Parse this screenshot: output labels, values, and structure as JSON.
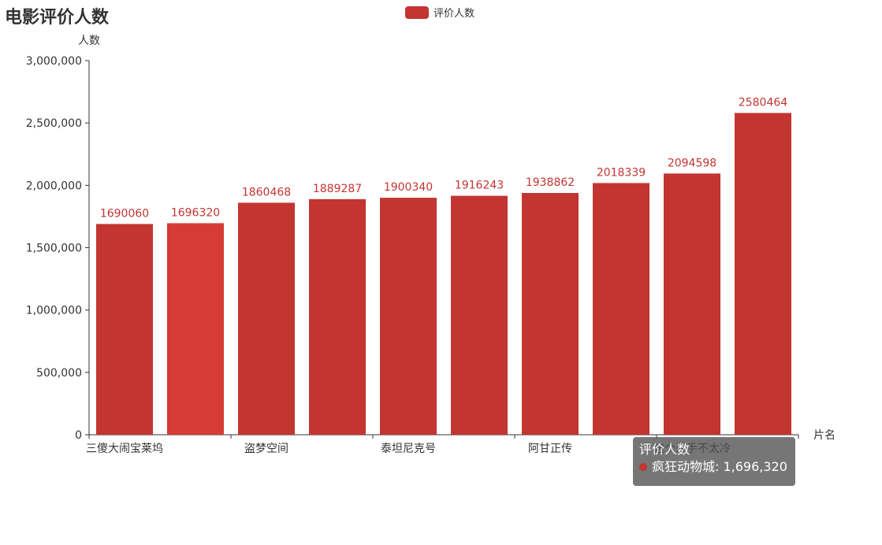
{
  "chart_data": {
    "type": "bar",
    "title": "电影评价人数",
    "ylabel": "人数",
    "xlabel": "片名",
    "ylim": [
      0,
      3000000
    ],
    "yticks": [
      0,
      500000,
      1000000,
      1500000,
      2000000,
      2500000,
      3000000
    ],
    "ytick_labels": [
      "0",
      "500,000",
      "1,000,000",
      "1,500,000",
      "2,000,000",
      "2,500,000",
      "3,000,000"
    ],
    "categories": [
      "三傻大闹宝莱坞",
      "疯狂动物城",
      "盗梦空间",
      "",
      "泰坦尼克号",
      "",
      "阿甘正传",
      "",
      "这个杀手不太冷",
      ""
    ],
    "visible_category_labels": [
      "三傻大闹宝莱坞",
      "盗梦空间",
      "泰坦尼克号",
      "阿甘正传",
      "这个杀手不太冷"
    ],
    "series": [
      {
        "name": "评价人数",
        "values": [
          1690060,
          1696320,
          1860468,
          1889287,
          1900340,
          1916243,
          1938862,
          2018339,
          2094598,
          2580464
        ],
        "data_labels": [
          "1690060",
          "1696320",
          "1860468",
          "1889287",
          "1900340",
          "1916243",
          "1938862",
          "2018339",
          "2094598",
          "2580464"
        ]
      }
    ],
    "highlighted_index": 1,
    "colors": {
      "bar": "#c23531",
      "bar_highlight": "#d63b35",
      "axis": "#333333",
      "label": "#c23531",
      "text": "#333333"
    },
    "legend": {
      "position": "top-center"
    },
    "grid": false
  },
  "legend": {
    "label": "评价人数"
  },
  "tooltip": {
    "title": "评价人数",
    "item": "疯狂动物城: 1,696,320"
  }
}
